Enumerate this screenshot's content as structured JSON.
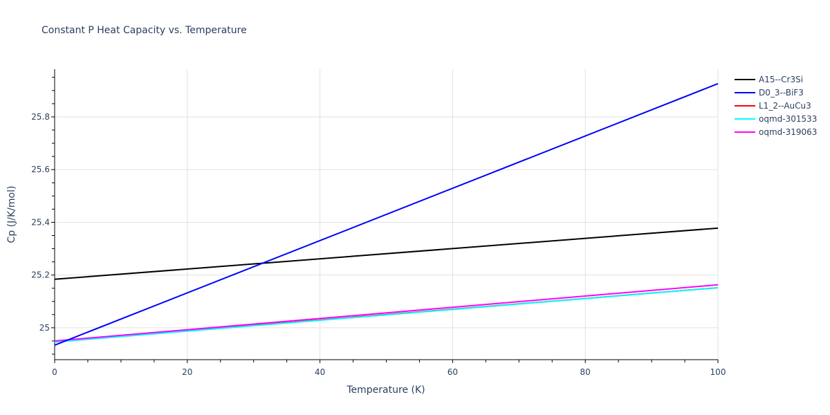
{
  "chart_data": {
    "type": "line",
    "title": "Constant P Heat Capacity vs. Temperature",
    "xlabel": "Temperature (K)",
    "ylabel": "Cp (J/K/mol)",
    "xlim": [
      0,
      100
    ],
    "ylim": [
      24.879,
      25.981
    ],
    "x_ticks": [
      0,
      20,
      40,
      60,
      80,
      100
    ],
    "y_ticks": [
      25,
      25.2,
      25.4,
      25.6,
      25.8
    ],
    "y_tick_labels": [
      "25",
      "25.2",
      "25.4",
      "25.6",
      "25.8"
    ],
    "grid": true,
    "legend_position": "right",
    "x": [
      0,
      100
    ],
    "series": [
      {
        "name": "A15--Cr3Si",
        "color": "#000000",
        "values": [
          25.184,
          25.378
        ]
      },
      {
        "name": "D0_3--BiF3",
        "color": "#0000ff",
        "values": [
          24.934,
          25.926
        ]
      },
      {
        "name": "L1_2--AuCu3",
        "color": "#ff0000",
        "values": [
          24.948,
          25.152
        ]
      },
      {
        "name": "oqmd-301533",
        "color": "#00ffff",
        "values": [
          24.946,
          25.152
        ]
      },
      {
        "name": "oqmd-319063",
        "color": "#ff00ff",
        "values": [
          24.95,
          25.163
        ]
      }
    ]
  }
}
